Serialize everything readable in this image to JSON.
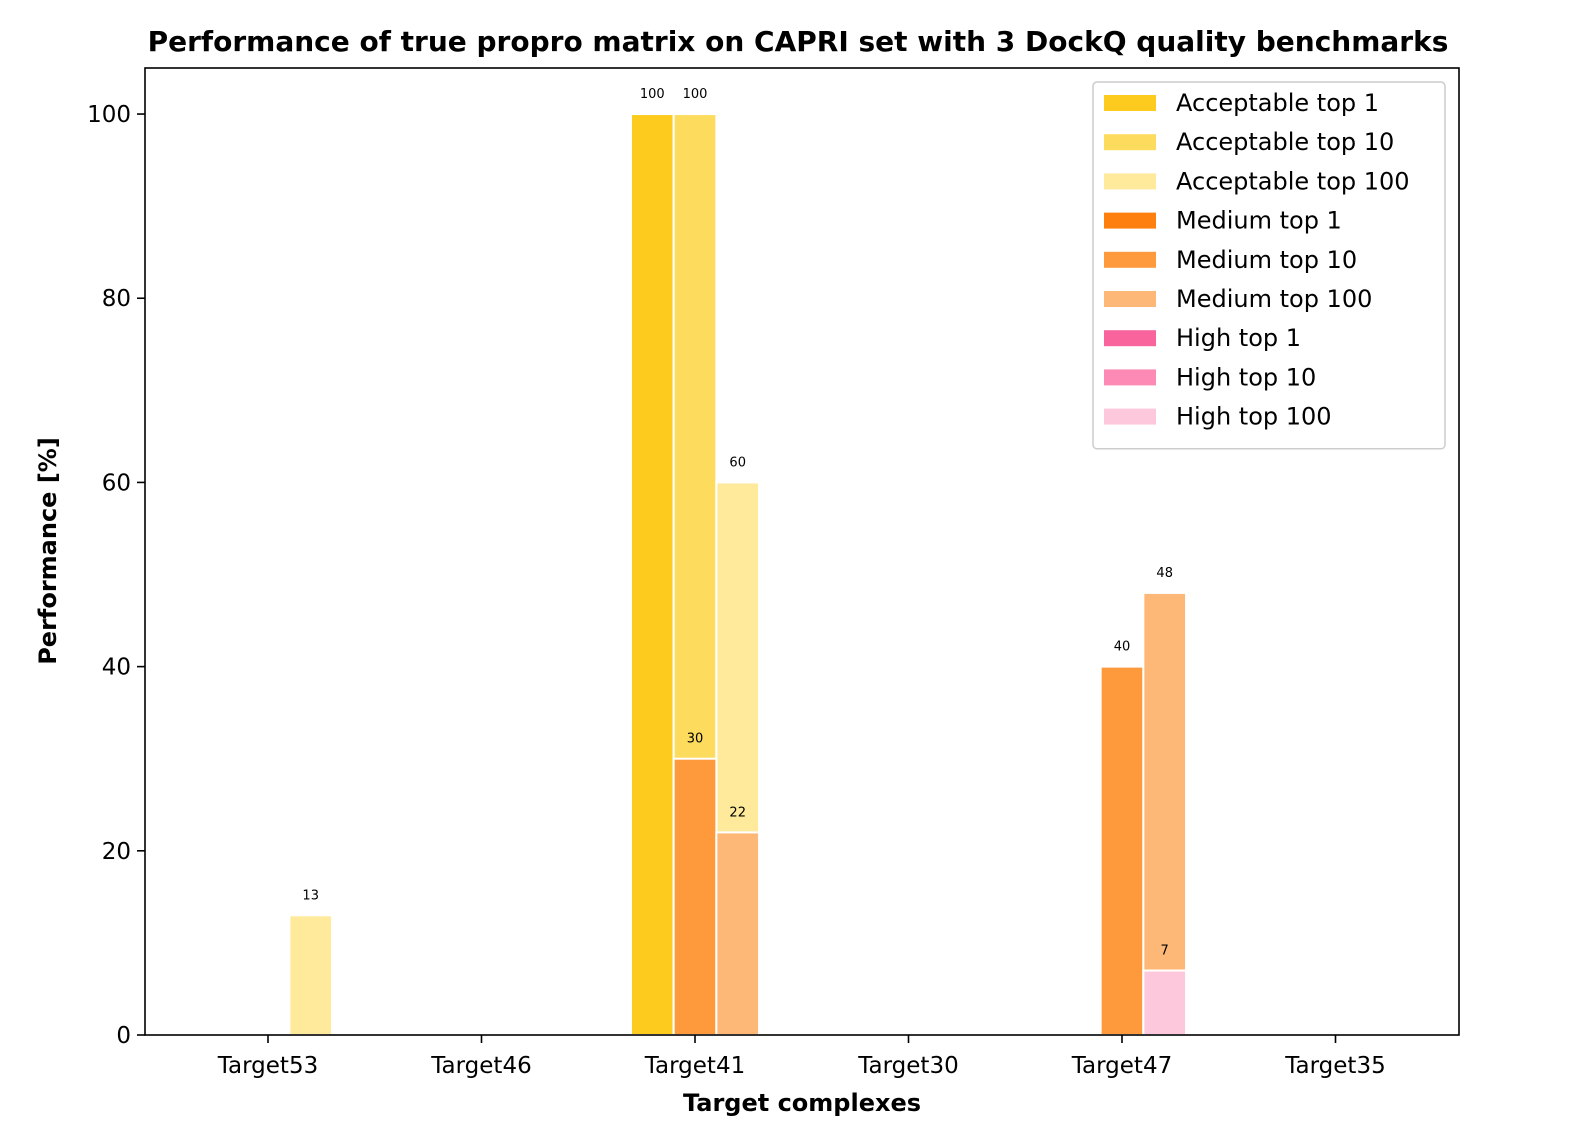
{
  "chart_data": {
    "type": "bar",
    "title": "Performance of true propro matrix on CAPRI set with 3 DockQ quality benchmarks",
    "xlabel": "Target complexes",
    "ylabel": "Performance [%]",
    "ylim": [
      0,
      105
    ],
    "yticks": [
      0,
      20,
      40,
      60,
      80,
      100
    ],
    "grid": false,
    "legend_position": "top-right",
    "categories": [
      "Target53",
      "Target46",
      "Target41",
      "Target30",
      "Target47",
      "Target35"
    ],
    "series": [
      {
        "name": "Acceptable top 1",
        "color": "#fdcb1d",
        "values": [
          0,
          0,
          100,
          0,
          0,
          0
        ]
      },
      {
        "name": "Acceptable top 10",
        "color": "#fddc5d",
        "values": [
          0,
          0,
          100,
          0,
          0,
          0
        ]
      },
      {
        "name": "Acceptable top 100",
        "color": "#feea9a",
        "values": [
          13,
          0,
          60,
          0,
          0,
          0
        ]
      },
      {
        "name": "Medium top 1",
        "color": "#fe7f0d",
        "values": [
          0,
          0,
          0,
          0,
          0,
          0
        ]
      },
      {
        "name": "Medium top 10",
        "color": "#fe9a3b",
        "values": [
          0,
          0,
          30,
          0,
          40,
          0
        ]
      },
      {
        "name": "Medium top 100",
        "color": "#fdb877",
        "values": [
          0,
          0,
          22,
          0,
          48,
          0
        ]
      },
      {
        "name": "High top 1",
        "color": "#f9649c",
        "values": [
          0,
          0,
          0,
          0,
          0,
          0
        ]
      },
      {
        "name": "High top 10",
        "color": "#fc8ab4",
        "values": [
          0,
          0,
          0,
          0,
          0,
          0
        ]
      },
      {
        "name": "High top 100",
        "color": "#fec8dc",
        "values": [
          0,
          0,
          0,
          0,
          7,
          0
        ]
      }
    ],
    "data_labels": [
      "100",
      "100",
      "60",
      "13",
      "30",
      "22",
      "40",
      "48",
      "7"
    ]
  }
}
